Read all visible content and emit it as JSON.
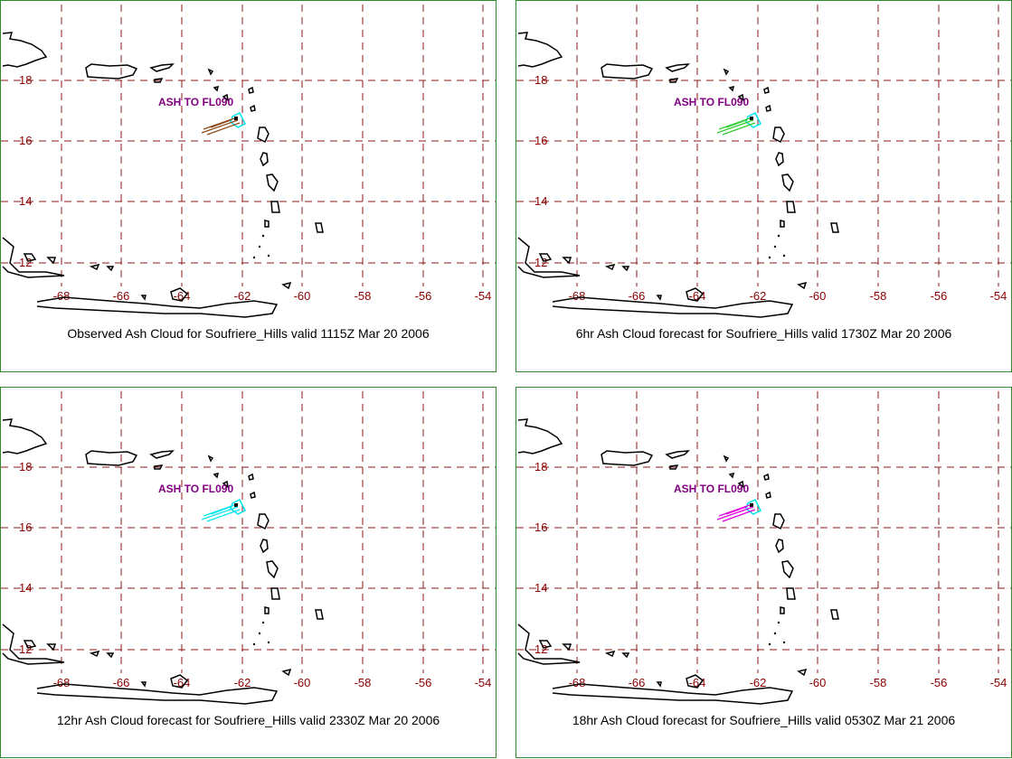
{
  "colors": {
    "grid": "#8b1a1a",
    "tick_text": "#8b0000",
    "border": "#2e8b2e",
    "land": "#000000",
    "ash_label": "#800080",
    "source_contour": "#00e5ee"
  },
  "ticks": {
    "lat": [
      "18",
      "16",
      "14",
      "12"
    ],
    "lon": [
      "-68",
      "-66",
      "-64",
      "-62",
      "-60",
      "-58",
      "-56",
      "-54"
    ]
  },
  "panels": [
    {
      "caption": "Observed Ash Cloud for Soufriere_Hills valid 1115Z Mar 20 2006",
      "ash_label": "ASH TO FL090",
      "ash_color": "#8b4513"
    },
    {
      "caption": "6hr Ash Cloud forecast for Soufriere_Hills valid 1730Z Mar 20 2006",
      "ash_label": "ASH TO FL090",
      "ash_color": "#32cd32"
    },
    {
      "caption": "12hr Ash Cloud forecast for Soufriere_Hills valid 2330Z Mar 20 2006",
      "ash_label": "ASH TO FL090",
      "ash_color": "#00e5ee"
    },
    {
      "caption": "18hr Ash Cloud forecast for Soufriere_Hills valid 0530Z Mar 21 2006",
      "ash_label": "ASH TO FL090",
      "ash_color": "#e000e0"
    }
  ]
}
